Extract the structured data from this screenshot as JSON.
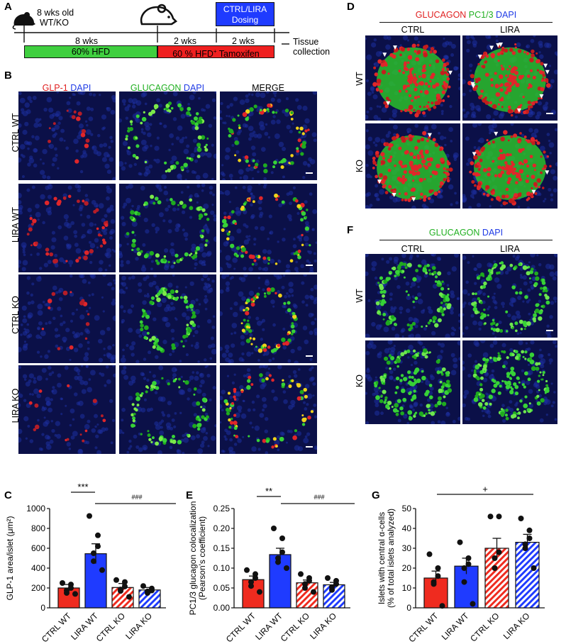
{
  "panel_letters": {
    "A": "A",
    "B": "B",
    "C": "C",
    "D": "D",
    "E": "E",
    "F": "F",
    "G": "G"
  },
  "timeline": {
    "mouse_label_line1": "8 wks old",
    "mouse_label_line2": "WT/KO",
    "dosing_line1": "CTRL/LIRA",
    "dosing_line2": "Dosing",
    "seg1": "8 wks",
    "seg2": "2 wks",
    "seg3": "2 wks",
    "end_line1": "Tissue",
    "end_line2": "collection",
    "bar_green": "60% HFD",
    "bar_red": "60 % HFD",
    "bar_red_sup": "+",
    "bar_red_suffix": " Tamoxifen",
    "colors": {
      "green": "#3fcf3f",
      "red": "#ef2020",
      "blue": "#1f3bff"
    }
  },
  "panelB": {
    "headers": [
      {
        "a": "GLP-1",
        "b": " DAPI"
      },
      {
        "a": "GLUCAGON",
        "b": " DAPI"
      },
      {
        "a": "MERGE",
        "b": ""
      }
    ],
    "rows": [
      "CTRL WT",
      "LIRA WT",
      "CTRL KO",
      "LIRA KO"
    ]
  },
  "panelD": {
    "title_a": "GLUCAGON",
    "title_b": " PC1/3",
    "title_c": " DAPI",
    "cols": [
      "CTRL",
      "LIRA"
    ],
    "rows": [
      "WT",
      "KO"
    ]
  },
  "panelF": {
    "title_a": "GLUCAGON",
    "title_b": " DAPI",
    "cols": [
      "CTRL",
      "LIRA"
    ],
    "rows": [
      "WT",
      "KO"
    ]
  },
  "chart_data": [
    {
      "id": "C",
      "type": "bar",
      "categories": [
        "CTRL WT",
        "LIRA WT",
        "CTRL KO",
        "LIRA KO"
      ],
      "values": [
        200,
        545,
        205,
        180
      ],
      "sem": [
        35,
        100,
        40,
        25
      ],
      "points": [
        [
          250,
          235,
          200,
          175,
          150,
          140
        ],
        [
          925,
          730,
          620,
          550,
          470,
          380
        ],
        [
          280,
          260,
          215,
          185,
          170,
          110
        ],
        [
          220,
          195,
          175,
          165,
          150
        ]
      ],
      "ylabel": "GLP-1 area/islet (μm²)",
      "ylim": [
        0,
        1000
      ],
      "yticks": [
        0,
        200,
        400,
        600,
        800,
        1000
      ],
      "sig1": "***",
      "sig2": "###"
    },
    {
      "id": "E",
      "type": "bar",
      "categories": [
        "CTRL WT",
        "LIRA WT",
        "CTRL KO",
        "LIRA KO"
      ],
      "values": [
        0.071,
        0.134,
        0.063,
        0.058
      ],
      "sem": [
        0.009,
        0.016,
        0.007,
        0.006
      ],
      "points": [
        [
          0.095,
          0.085,
          0.075,
          0.065,
          0.055,
          0.04
        ],
        [
          0.2,
          0.175,
          0.14,
          0.125,
          0.115,
          0.1
        ],
        [
          0.085,
          0.075,
          0.068,
          0.06,
          0.05,
          0.04
        ],
        [
          0.075,
          0.068,
          0.06,
          0.052,
          0.045
        ]
      ],
      "ylabel": "PC1/3 glucagon colocalization (Pearson's coefficient)",
      "ylim": [
        0,
        0.25
      ],
      "yticks": [
        "0.00",
        "0.05",
        "0.10",
        "0.15",
        "0.20",
        "0.25"
      ],
      "sig1": "**",
      "sig2": "###"
    },
    {
      "id": "G",
      "type": "bar",
      "categories": [
        "CTRL WT",
        "LIRA WT",
        "CTRL KO",
        "LIRA KO"
      ],
      "values": [
        15,
        21,
        30,
        33
      ],
      "sem": [
        3.5,
        4,
        5,
        4
      ],
      "points": [
        [
          27,
          20,
          16,
          13,
          12,
          1
        ],
        [
          33,
          25,
          22,
          20,
          13,
          2
        ],
        [
          46,
          46,
          28,
          25,
          20
        ],
        [
          45,
          39,
          35,
          32,
          30,
          20
        ]
      ],
      "ylabel": "Islets with central α-cells (% of total islets analyzed)",
      "ylim": [
        0,
        50
      ],
      "yticks": [
        0,
        10,
        20,
        30,
        40,
        50
      ],
      "sig1": "+"
    }
  ],
  "bar_colors": {
    "ctrl_wt": "#ef2b1f",
    "lira_wt": "#1f3bff",
    "ctrl_ko": "#ef2b1f",
    "lira_ko": "#1f3bff"
  }
}
